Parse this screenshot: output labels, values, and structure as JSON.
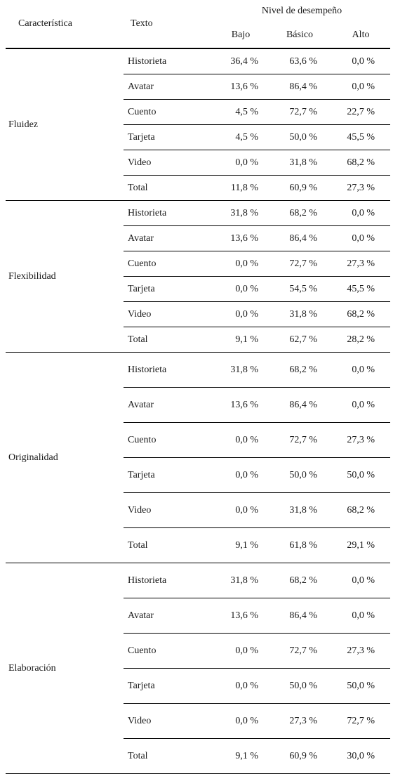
{
  "header": {
    "caracteristica": "Característica",
    "texto": "Texto",
    "group": "Nivel de desempeño",
    "bajo": "Bajo",
    "basico": "Básico",
    "alto": "Alto"
  },
  "blocks": [
    {
      "name": "Fluidez",
      "rows": [
        {
          "texto": "Historieta",
          "bajo": "36,4 %",
          "basico": "63,6 %",
          "alto": "0,0 %"
        },
        {
          "texto": "Avatar",
          "bajo": "13,6 %",
          "basico": "86,4 %",
          "alto": "0,0 %"
        },
        {
          "texto": "Cuento",
          "bajo": "4,5 %",
          "basico": "72,7 %",
          "alto": "22,7 %"
        },
        {
          "texto": "Tarjeta",
          "bajo": "4,5 %",
          "basico": "50,0 %",
          "alto": "45,5 %"
        },
        {
          "texto": "Video",
          "bajo": "0,0 %",
          "basico": "31,8 %",
          "alto": "68,2 %"
        },
        {
          "texto": "Total",
          "bajo": "11,8 %",
          "basico": "60,9 %",
          "alto": "27,3 %"
        }
      ]
    },
    {
      "name": "Flexibilidad",
      "rows": [
        {
          "texto": "Historieta",
          "bajo": "31,8 %",
          "basico": "68,2 %",
          "alto": "0,0 %"
        },
        {
          "texto": "Avatar",
          "bajo": "13,6 %",
          "basico": "86,4 %",
          "alto": "0,0 %"
        },
        {
          "texto": "Cuento",
          "bajo": "0,0 %",
          "basico": "72,7 %",
          "alto": "27,3 %"
        },
        {
          "texto": "Tarjeta",
          "bajo": "0,0 %",
          "basico": "54,5 %",
          "alto": "45,5 %"
        },
        {
          "texto": "Video",
          "bajo": "0,0 %",
          "basico": "31,8 %",
          "alto": "68,2 %"
        },
        {
          "texto": "Total",
          "bajo": "9,1 %",
          "basico": "62,7 %",
          "alto": "28,2 %"
        }
      ]
    },
    {
      "name": "Originalidad",
      "rows": [
        {
          "texto": "Historieta",
          "bajo": "31,8 %",
          "basico": "68,2 %",
          "alto": "0,0 %"
        },
        {
          "texto": "Avatar",
          "bajo": "13,6 %",
          "basico": "86,4 %",
          "alto": "0,0 %"
        },
        {
          "texto": "Cuento",
          "bajo": "0,0 %",
          "basico": "72,7 %",
          "alto": "27,3 %"
        },
        {
          "texto": "Tarjeta",
          "bajo": "0,0 %",
          "basico": "50,0 %",
          "alto": "50,0 %"
        },
        {
          "texto": "Video",
          "bajo": "0,0 %",
          "basico": "31,8 %",
          "alto": "68,2 %"
        },
        {
          "texto": "Total",
          "bajo": "9,1 %",
          "basico": "61,8 %",
          "alto": "29,1 %"
        }
      ]
    },
    {
      "name": "Elaboración",
      "rows": [
        {
          "texto": "Historieta",
          "bajo": "31,8 %",
          "basico": "68,2 %",
          "alto": "0,0 %"
        },
        {
          "texto": "Avatar",
          "bajo": "13,6 %",
          "basico": "86,4 %",
          "alto": "0,0 %"
        },
        {
          "texto": "Cuento",
          "bajo": "0,0 %",
          "basico": "72,7 %",
          "alto": "27,3 %"
        },
        {
          "texto": "Tarjeta",
          "bajo": "0,0 %",
          "basico": "50,0 %",
          "alto": "50,0 %"
        },
        {
          "texto": "Video",
          "bajo": "0,0 %",
          "basico": "27,3 %",
          "alto": "72,7 %"
        },
        {
          "texto": "Total",
          "bajo": "9,1 %",
          "basico": "60,9 %",
          "alto": "30,0 %"
        }
      ]
    }
  ]
}
